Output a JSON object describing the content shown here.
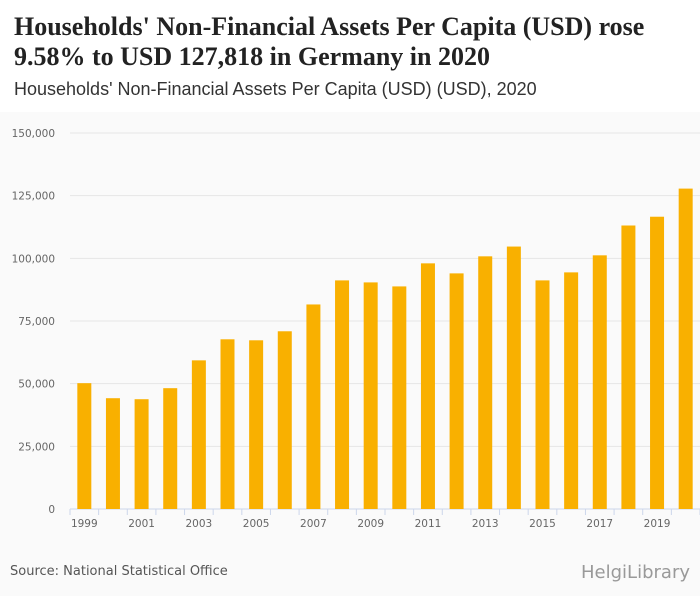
{
  "header": {
    "title": "Households' Non-Financial Assets Per Capita (USD) rose 9.58% to USD 127,818 in Germany in 2020",
    "subtitle": "Households' Non-Financial Assets Per Capita (USD) (USD), 2020"
  },
  "footer": {
    "source": "Source: National Statistical Office",
    "logo": "HelgiLibrary"
  },
  "colors": {
    "bar": "#f9b000",
    "grid": "#e6e6e6",
    "axis": "#ccd6eb"
  },
  "chart_data": {
    "type": "bar",
    "title": "Households' Non-Financial Assets Per Capita (USD) (USD), 2020",
    "xlabel": "",
    "ylabel": "",
    "ylim": [
      0,
      150000
    ],
    "yticks": [
      0,
      25000,
      50000,
      75000,
      100000,
      125000,
      150000
    ],
    "ytick_labels": [
      "0",
      "25,000",
      "50,000",
      "75,000",
      "100,000",
      "125,000",
      "150,000"
    ],
    "categories": [
      "1999",
      "2000",
      "2001",
      "2002",
      "2003",
      "2004",
      "2005",
      "2006",
      "2007",
      "2008",
      "2009",
      "2010",
      "2011",
      "2012",
      "2013",
      "2014",
      "2015",
      "2016",
      "2017",
      "2018",
      "2019",
      "2020"
    ],
    "xtick_labels": [
      "1999",
      "2001",
      "2003",
      "2005",
      "2007",
      "2009",
      "2011",
      "2013",
      "2015",
      "2017",
      "2019"
    ],
    "values": [
      50200,
      44200,
      43800,
      48200,
      59300,
      67700,
      67300,
      70900,
      81600,
      91200,
      90400,
      88800,
      98000,
      94000,
      100800,
      104700,
      91200,
      94400,
      101200,
      113100,
      116600,
      127818
    ],
    "grid": true,
    "legend": "none"
  }
}
